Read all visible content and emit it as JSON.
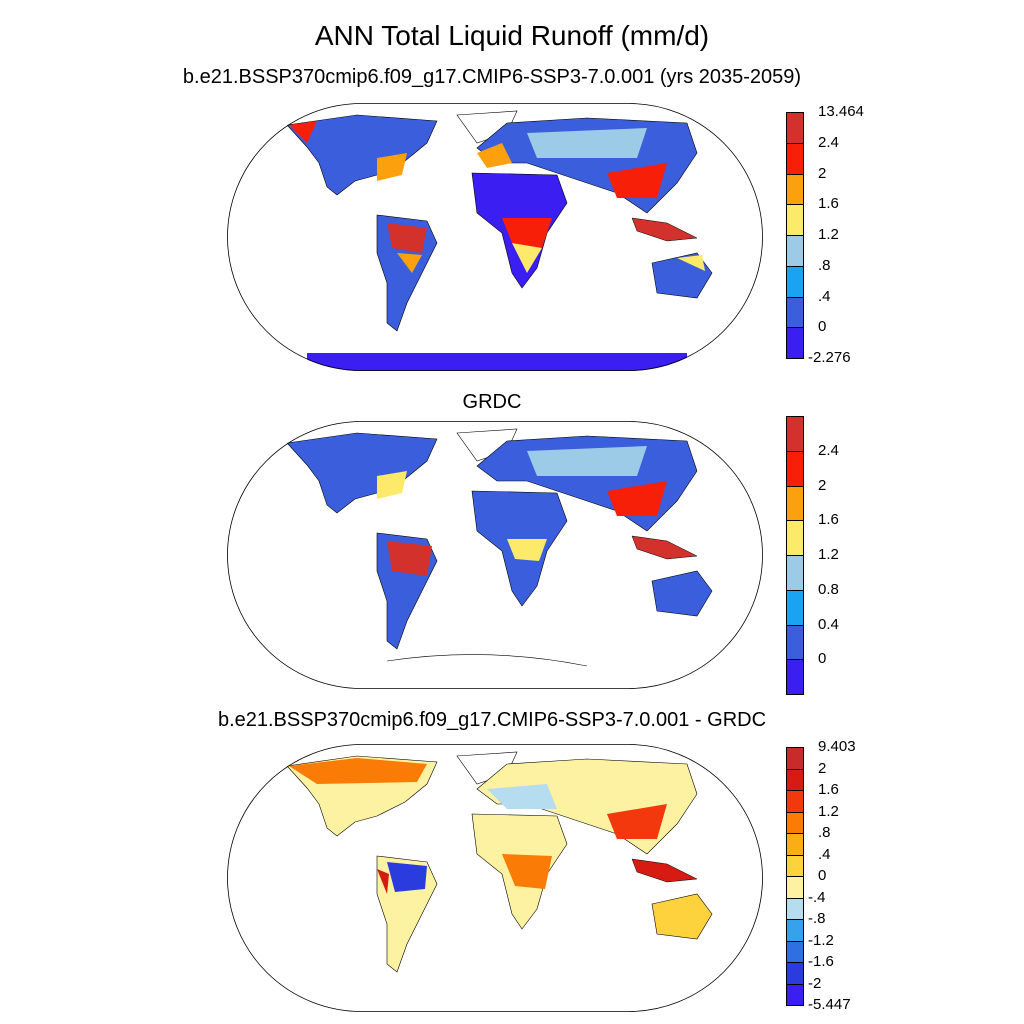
{
  "main_title": "ANN Total Liquid Runoff (mm/d)",
  "panels": [
    {
      "title": "b.e21.BSSP370cmip6.f09_g17.CMIP6-SSP3-7.0.001 (yrs 2035-2059)",
      "colorbar": {
        "colors": [
          "#3a1ef2",
          "#3b5fdc",
          "#1aa3f0",
          "#9ccbe8",
          "#fde96a",
          "#fca10d",
          "#f71f08",
          "#d2312c"
        ],
        "labels": [
          "-2.276",
          "0",
          ".4",
          ".8",
          "1.2",
          "1.6",
          "2",
          "2.4",
          "13.464"
        ]
      }
    },
    {
      "title": "GRDC",
      "colorbar": {
        "colors": [
          "#3a1ef2",
          "#3b5fdc",
          "#1aa3f0",
          "#9ccbe8",
          "#fde96a",
          "#fca10d",
          "#f71f08",
          "#d2312c"
        ],
        "labels": [
          "0",
          "0.4",
          "0.8",
          "1.2",
          "1.6",
          "2",
          "2.4"
        ]
      }
    },
    {
      "title": "b.e21.BSSP370cmip6.f09_g17.CMIP6-SSP3-7.0.001 - GRDC",
      "colorbar": {
        "colors": [
          "#3a1ef2",
          "#2a3cde",
          "#2f6fe2",
          "#36a2ec",
          "#b6dcef",
          "#fdf2a2",
          "#fdd23c",
          "#fbad16",
          "#fa7b06",
          "#f2380c",
          "#d71b12",
          "#c72c2a"
        ],
        "labels": [
          "-5.447",
          "-2",
          "-1.6",
          "-1.2",
          "-.8",
          "-.4",
          "0",
          ".4",
          ".8",
          "1.2",
          "1.6",
          "2",
          "9.403"
        ]
      }
    }
  ]
}
